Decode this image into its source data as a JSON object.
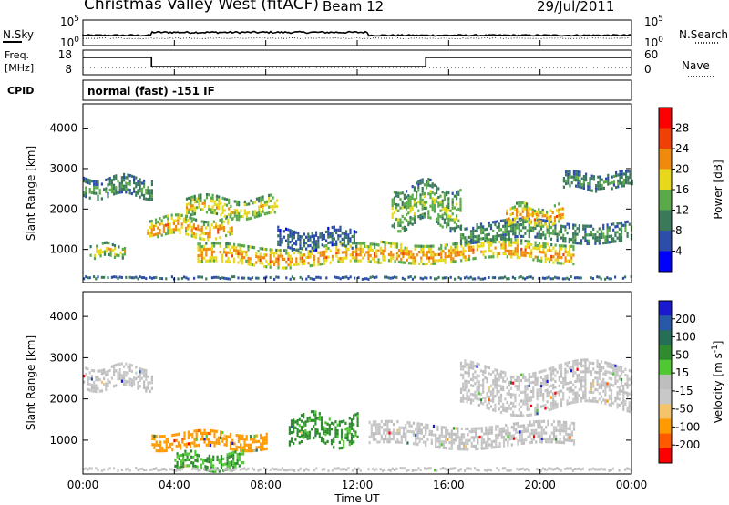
{
  "header": {
    "station": "Christmas Valley West (fitACF)",
    "beam": "Beam 12",
    "date": "29/Jul/2011"
  },
  "panels": {
    "nsky_label": "N.Sky",
    "nsearch_label": "N.Search",
    "freq_label_top": "Freq.",
    "freq_label_bottom": "[MHz]",
    "nave_label": "Nave",
    "cpid_label": "CPID",
    "cpid_text": "normal (fast) -151 IF",
    "noise_left_ticks": [
      "10^5",
      "10^0"
    ],
    "noise_right_ticks": [
      "10^5",
      "10^0"
    ],
    "freq_ticks": [
      "18",
      "8"
    ],
    "nave_ticks": [
      "60",
      "0"
    ]
  },
  "colors": {
    "power_scale": [
      "#0000ff",
      "#2d4ea8",
      "#3a7a5a",
      "#5aaa4a",
      "#e8d81c",
      "#f08a0c",
      "#f04008",
      "#ff0000"
    ],
    "velocity_scale": [
      "#ff0000",
      "#ff5a00",
      "#ff9a00",
      "#f5c36a",
      "#c8c8c8",
      "#bebebe",
      "#50c832",
      "#2e8b2e",
      "#266e55",
      "#2858a8",
      "#1a1ad0"
    ]
  },
  "chart_data": [
    {
      "type": "heatmap",
      "title": "",
      "ylabel": "Slant Range [km]",
      "xlabel": "",
      "x_range_hours": [
        0,
        24
      ],
      "ylim": [
        180,
        4600
      ],
      "yticks": [
        1000,
        2000,
        3000,
        4000
      ],
      "colorbar": {
        "label": "Power [dB]",
        "ticks": [
          "28",
          "24",
          "20",
          "16",
          "12",
          "8",
          "4"
        ],
        "range": [
          0,
          32
        ]
      },
      "echo_bands_approx": [
        {
          "hours": [
            0.0,
            3.0
          ],
          "range_km": [
            2300,
            2800
          ],
          "power_db": 12
        },
        {
          "hours": [
            0.3,
            1.8
          ],
          "range_km": [
            850,
            1150
          ],
          "power_db": 20
        },
        {
          "hours": [
            2.8,
            6.5
          ],
          "range_km": [
            1300,
            1800
          ],
          "power_db": 24
        },
        {
          "hours": [
            4.5,
            8.5
          ],
          "range_km": [
            1800,
            2300
          ],
          "power_db": 20
        },
        {
          "hours": [
            5.0,
            13.0
          ],
          "range_km": [
            600,
            1100
          ],
          "power_db": 24
        },
        {
          "hours": [
            8.5,
            12.0
          ],
          "range_km": [
            1000,
            1500
          ],
          "power_db": 8
        },
        {
          "hours": [
            13.0,
            21.5
          ],
          "range_km": [
            700,
            1200
          ],
          "power_db": 24
        },
        {
          "hours": [
            13.5,
            16.5
          ],
          "range_km": [
            1600,
            2600
          ],
          "power_db": 16
        },
        {
          "hours": [
            16.5,
            24.0
          ],
          "range_km": [
            1200,
            1700
          ],
          "power_db": 12
        },
        {
          "hours": [
            18.5,
            21.0
          ],
          "range_km": [
            1600,
            2100
          ],
          "power_db": 24
        },
        {
          "hours": [
            21.0,
            24.0
          ],
          "range_km": [
            2500,
            2900
          ],
          "power_db": 12
        }
      ]
    },
    {
      "type": "heatmap",
      "title": "",
      "ylabel": "Slant Range [km]",
      "xlabel": "Time UT",
      "x_range_hours": [
        0,
        24
      ],
      "xtick_labels": [
        "00:00",
        "04:00",
        "08:00",
        "12:00",
        "16:00",
        "20:00",
        "00:00"
      ],
      "ylim": [
        180,
        4600
      ],
      "yticks": [
        1000,
        2000,
        3000,
        4000
      ],
      "colorbar": {
        "label": "Velocity [m s",
        "label_sup": "-1",
        "label_end": "]",
        "ticks": [
          "200",
          "100",
          "50",
          "15",
          "-15",
          "-50",
          "-100",
          "-200"
        ]
      },
      "echo_bands_approx": [
        {
          "hours": [
            0.0,
            3.0
          ],
          "range_km": [
            2300,
            2800
          ],
          "velocity_ms": 0
        },
        {
          "hours": [
            3.0,
            8.0
          ],
          "range_km": [
            800,
            1200
          ],
          "velocity_ms": -60
        },
        {
          "hours": [
            9.0,
            12.0
          ],
          "range_km": [
            900,
            1600
          ],
          "velocity_ms": 40
        },
        {
          "hours": [
            4.0,
            7.0
          ],
          "range_km": [
            300,
            700
          ],
          "velocity_ms": 30
        },
        {
          "hours": [
            12.5,
            21.5
          ],
          "range_km": [
            900,
            1400
          ],
          "velocity_ms": 0
        },
        {
          "hours": [
            16.5,
            24.0
          ],
          "range_km": [
            1800,
            2800
          ],
          "velocity_ms": 0
        }
      ]
    }
  ]
}
